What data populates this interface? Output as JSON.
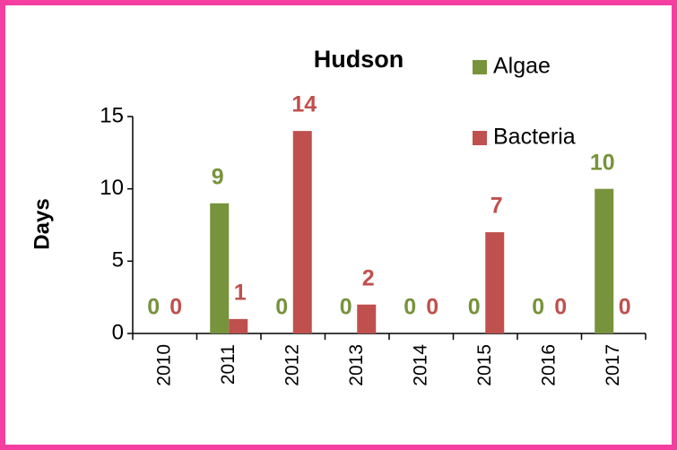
{
  "chart_data": {
    "type": "bar",
    "title": "Hudson",
    "y_label": "Days",
    "categories": [
      "2010",
      "2011",
      "2012",
      "2013",
      "2014",
      "2015",
      "2016",
      "2017"
    ],
    "series": [
      {
        "name": "Algae",
        "color": "#77933c",
        "values": [
          0,
          9,
          0,
          0,
          0,
          0,
          0,
          10
        ]
      },
      {
        "name": "Bacteria",
        "color": "#c0504d",
        "values": [
          0,
          1,
          14,
          2,
          0,
          7,
          0,
          0
        ]
      }
    ],
    "ylim": [
      0,
      15
    ],
    "yticks": [
      0,
      5,
      10,
      15
    ],
    "grid": false,
    "legend": "top-right"
  }
}
